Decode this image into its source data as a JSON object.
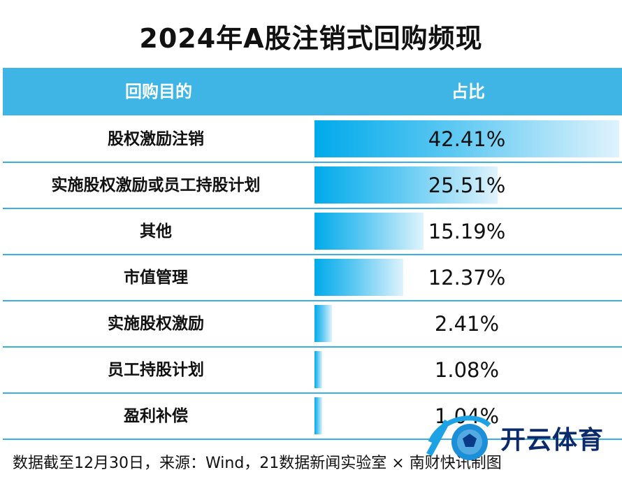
{
  "title": "2024年A股注销式回购频现",
  "table": {
    "header_category": "回购目的",
    "header_value": "占比"
  },
  "chart_data": {
    "type": "bar",
    "orientation": "horizontal",
    "categories": [
      "股权激励注销",
      "实施股权激励或员工持股计划",
      "其他",
      "市值管理",
      "实施股权激励",
      "员工持股计划",
      "盈利补偿"
    ],
    "values": [
      42.41,
      25.51,
      15.19,
      12.37,
      2.41,
      1.08,
      1.04
    ],
    "labels": [
      "42.41%",
      "25.51%",
      "15.19%",
      "12.37%",
      "2.41%",
      "1.08%",
      "1.04%"
    ],
    "unit": "%",
    "xlim": [
      0,
      42.41
    ]
  },
  "note": "数据截至12月30日，来源：Wind，21数据新闻实验室 × 南财快讯制图",
  "watermark": {
    "text": "开云体育"
  },
  "colors": {
    "header": "#3eb5e4",
    "bar_start": "#00aaea",
    "bar_end": "#dff3fc",
    "divider": "#39b0e3"
  }
}
